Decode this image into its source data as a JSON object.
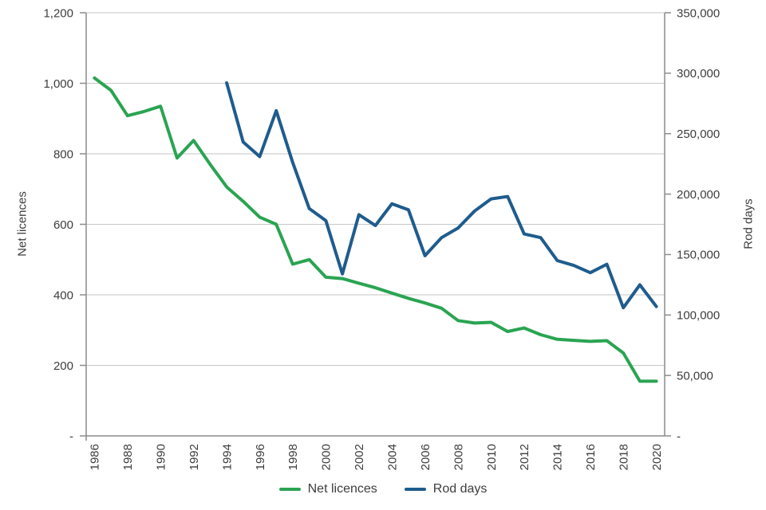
{
  "chart_data": {
    "type": "line",
    "x": [
      1986,
      1987,
      1988,
      1989,
      1990,
      1991,
      1992,
      1993,
      1994,
      1995,
      1996,
      1997,
      1998,
      1999,
      2000,
      2001,
      2002,
      2003,
      2004,
      2005,
      2006,
      2007,
      2008,
      2009,
      2010,
      2011,
      2012,
      2013,
      2014,
      2015,
      2016,
      2017,
      2018,
      2019,
      2020
    ],
    "series": [
      {
        "name": "Net licences",
        "axis": "left",
        "color": "#2aa452",
        "values": [
          1015,
          980,
          908,
          920,
          935,
          788,
          838,
          770,
          706,
          665,
          620,
          600,
          487,
          500,
          450,
          446,
          433,
          420,
          405,
          390,
          377,
          362,
          327,
          320,
          322,
          296,
          306,
          287,
          274,
          271,
          268,
          270,
          235,
          155,
          155
        ]
      },
      {
        "name": "Rod days",
        "axis": "right",
        "color": "#1f5c8d",
        "values": [
          null,
          null,
          null,
          null,
          null,
          null,
          null,
          null,
          292000,
          243000,
          231000,
          269000,
          226000,
          188000,
          178000,
          134000,
          183000,
          174000,
          192000,
          187000,
          149000,
          164000,
          172000,
          186000,
          196000,
          198000,
          167000,
          164000,
          145000,
          141000,
          135000,
          142000,
          106000,
          125000,
          107000
        ]
      }
    ],
    "left_axis": {
      "label": "Net licences",
      "min": 0,
      "max": 1200,
      "tick_step": 200,
      "tick_labels": [
        "-",
        "200",
        "400",
        "600",
        "800",
        "1,000",
        "1,200"
      ]
    },
    "right_axis": {
      "label": "Rod days",
      "min": 0,
      "max": 350000,
      "tick_step": 50000,
      "tick_labels": [
        "-",
        "50,000",
        "100,000",
        "150,000",
        "200,000",
        "250,000",
        "300,000",
        "350,000"
      ]
    },
    "x_axis": {
      "tick_labels": [
        "1986",
        "1988",
        "1990",
        "1992",
        "1994",
        "1996",
        "1998",
        "2000",
        "2002",
        "2004",
        "2006",
        "2008",
        "2010",
        "2012",
        "2014",
        "2016",
        "2018",
        "2020"
      ]
    },
    "legend": [
      {
        "label": "Net licences",
        "color": "#2aa452"
      },
      {
        "label": "Rod days",
        "color": "#1f5c8d"
      }
    ],
    "grid": true,
    "grid_color": "#c6c6c6",
    "axis_color": "#8c8c8c",
    "text_color": "#3d3d3d",
    "legend_position": "bottom"
  }
}
